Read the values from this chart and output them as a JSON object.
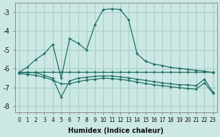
{
  "xlabel": "Humidex (Indice chaleur)",
  "bg_color": "#cce8e4",
  "grid_color": "#a8ceca",
  "line_color": "#1a6b60",
  "xlim": [
    -0.5,
    23.5
  ],
  "ylim": [
    -8.3,
    -2.5
  ],
  "yticks": [
    -8,
    -7,
    -6,
    -5,
    -4,
    -3
  ],
  "xticks": [
    0,
    1,
    2,
    3,
    4,
    5,
    6,
    7,
    8,
    9,
    10,
    11,
    12,
    13,
    14,
    15,
    16,
    17,
    18,
    19,
    20,
    21,
    22,
    23
  ],
  "line1_x": [
    0,
    1,
    2,
    3,
    4,
    5,
    6,
    7,
    8,
    9,
    10,
    11,
    12,
    13,
    14,
    15,
    16,
    17,
    18,
    19,
    20,
    21,
    22,
    23
  ],
  "line1_y": [
    -6.2,
    -5.9,
    -5.5,
    -5.2,
    -4.7,
    -6.5,
    -4.4,
    -4.65,
    -5.0,
    -3.65,
    -2.85,
    -2.82,
    -2.85,
    -3.4,
    -5.2,
    -5.6,
    -5.75,
    -5.83,
    -5.93,
    -5.97,
    -6.03,
    -6.08,
    -6.13,
    -6.2
  ],
  "line2_x": [
    0,
    1,
    2,
    3,
    4,
    5,
    6,
    7,
    8,
    9,
    10,
    11,
    12,
    13,
    14,
    15,
    16,
    17,
    18,
    19,
    20,
    21,
    22,
    23
  ],
  "line2_y": [
    -6.15,
    -6.15,
    -6.15,
    -6.15,
    -6.15,
    -6.15,
    -6.15,
    -6.15,
    -6.15,
    -6.15,
    -6.15,
    -6.15,
    -6.15,
    -6.15,
    -6.15,
    -6.15,
    -6.15,
    -6.15,
    -6.15,
    -6.15,
    -6.15,
    -6.15,
    -6.15,
    -6.15
  ],
  "line3_x": [
    0,
    1,
    2,
    3,
    4,
    5,
    6,
    7,
    8,
    9,
    10,
    11,
    12,
    13,
    14,
    15,
    16,
    17,
    18,
    19,
    20,
    21,
    22,
    23
  ],
  "line3_y": [
    -6.2,
    -6.2,
    -6.2,
    -6.35,
    -6.5,
    -7.5,
    -6.65,
    -6.5,
    -6.45,
    -6.4,
    -6.38,
    -6.38,
    -6.43,
    -6.48,
    -6.55,
    -6.62,
    -6.68,
    -6.75,
    -6.8,
    -6.85,
    -6.85,
    -6.9,
    -6.55,
    -7.25
  ],
  "line4_x": [
    0,
    1,
    2,
    3,
    4,
    5,
    6,
    7,
    8,
    9,
    10,
    11,
    12,
    13,
    14,
    15,
    16,
    17,
    18,
    19,
    20,
    21,
    22,
    23
  ],
  "line4_y": [
    -6.25,
    -6.3,
    -6.35,
    -6.45,
    -6.6,
    -6.8,
    -6.8,
    -6.68,
    -6.6,
    -6.55,
    -6.5,
    -6.52,
    -6.56,
    -6.62,
    -6.7,
    -6.78,
    -6.85,
    -6.9,
    -6.95,
    -7.0,
    -7.05,
    -7.08,
    -6.75,
    -7.3
  ]
}
